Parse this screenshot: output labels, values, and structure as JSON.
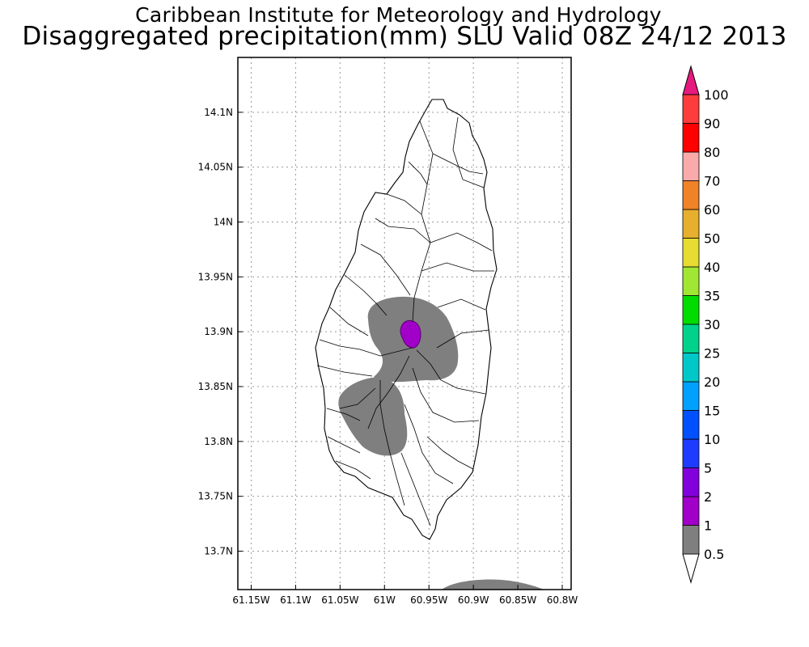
{
  "header": {
    "line1": "Caribbean Institute for Meteorology and Hydrology",
    "line2": "Disaggregated precipitation(mm) SLU Valid 08Z 24/12 2013"
  },
  "map": {
    "lat_ticks": [
      "14.1N",
      "14.05N",
      "14N",
      "13.95N",
      "13.9N",
      "13.85N",
      "13.8N",
      "13.75N",
      "13.7N"
    ],
    "lon_ticks": [
      "61.15W",
      "61.1W",
      "61.05W",
      "61W",
      "60.95W",
      "60.9W",
      "60.85W",
      "60.8W"
    ],
    "lat_range": [
      13.665,
      14.15
    ],
    "lon_range": [
      -61.165,
      -60.79
    ],
    "grid": true,
    "colors": {
      "precip_0_5_to_1": "#7f7f7f",
      "precip_1_to_2": "#a000c8",
      "precip_2_to_5": "#8200dc"
    }
  },
  "colorbar": {
    "labels": [
      "0.5",
      "1",
      "2",
      "5",
      "10",
      "15",
      "20",
      "25",
      "30",
      "35",
      "40",
      "50",
      "60",
      "70",
      "80",
      "90",
      "100"
    ],
    "colors": [
      "#7f7f7f",
      "#a000c8",
      "#8200dc",
      "#1e3cff",
      "#0050ff",
      "#00a0ff",
      "#00c8c8",
      "#00d28c",
      "#00dc00",
      "#a0e632",
      "#e6dc32",
      "#e6af2d",
      "#f08228",
      "#faaaaa",
      "#ff0000",
      "#ff3c3c",
      "#ff55aa"
    ],
    "under_color": "#ffffff",
    "over_color": "#e6197f"
  }
}
